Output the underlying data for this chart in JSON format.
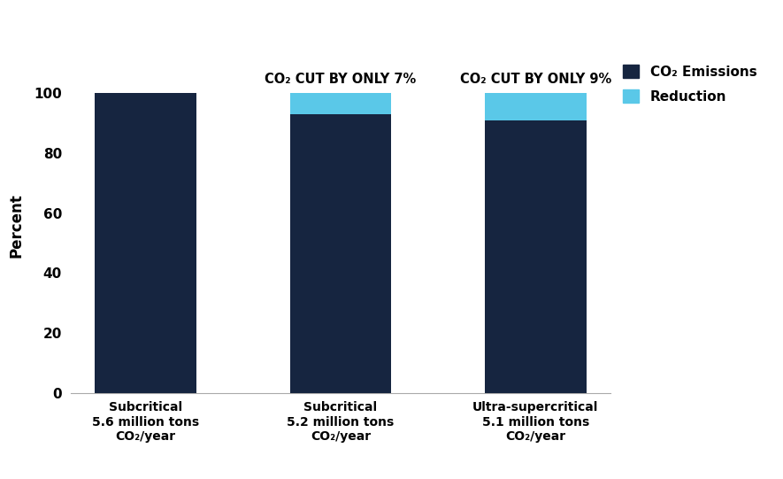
{
  "categories": [
    "Subcritical\n5.6 million tons\nCO₂/year",
    "Subcritical\n5.2 million tons\nCO₂/year",
    "Ultra-supercritical\n5.1 million tons\nCO₂/year"
  ],
  "emissions": [
    100,
    93,
    91
  ],
  "reductions": [
    0,
    7,
    9
  ],
  "bar_color_emissions": "#162540",
  "bar_color_reduction": "#5AC8E8",
  "annotation_bar2": "CO₂ CUT BY ONLY 7%",
  "annotation_bar3": "CO₂ CUT BY ONLY 9%",
  "ylabel": "Percent",
  "ylim": [
    0,
    112
  ],
  "yticks": [
    0,
    20,
    40,
    60,
    80,
    100
  ],
  "legend_emissions": "CO₂ Emissions",
  "legend_reduction": "Reduction",
  "background_color": "#ffffff",
  "annotation_fontsize": 10.5,
  "axis_fontsize": 12,
  "tick_fontsize": 11,
  "legend_fontsize": 11,
  "xlabel_fontsize": 10,
  "bar_width": 0.52
}
